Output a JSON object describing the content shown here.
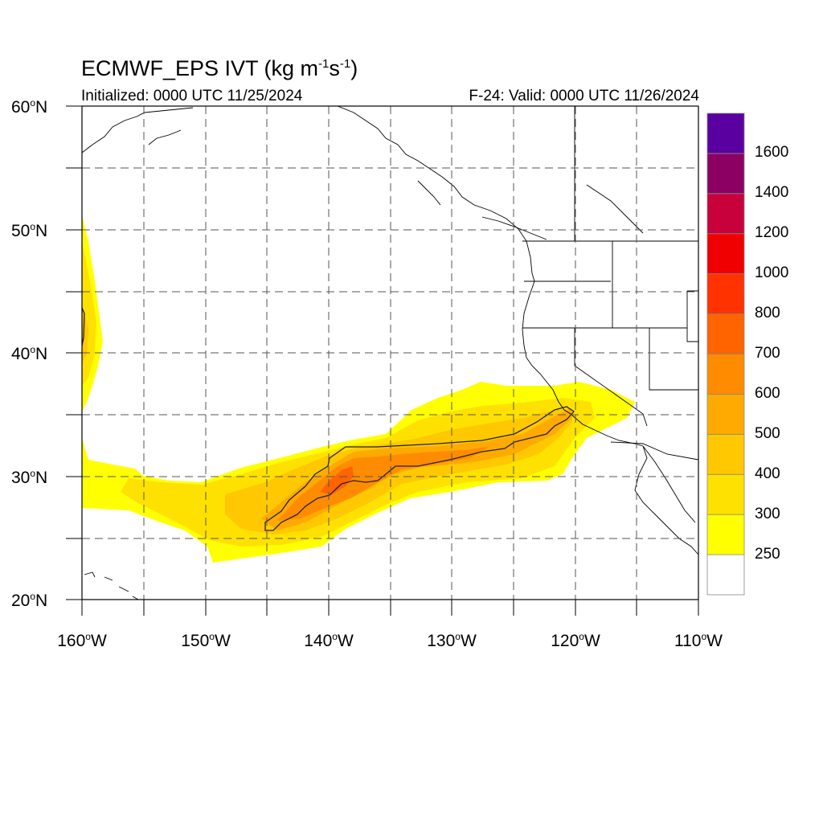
{
  "header": {
    "title": "ECMWF_EPS IVT (kg m",
    "title_exp1": "-1",
    "title_mid": "s",
    "title_exp2": "-1",
    "title_end": ")",
    "initialized": "Initialized: 0000 UTC 11/25/2024",
    "valid": "F-24: Valid: 0000 UTC 11/26/2024"
  },
  "map": {
    "lat_range": [
      20,
      60
    ],
    "lon_range": [
      -160,
      -110
    ],
    "lat_labels": [
      {
        "deg": "60",
        "hemi": "N"
      },
      {
        "deg": "50",
        "hemi": "N"
      },
      {
        "deg": "40",
        "hemi": "N"
      },
      {
        "deg": "30",
        "hemi": "N"
      },
      {
        "deg": "20",
        "hemi": "N"
      }
    ],
    "lon_labels": [
      {
        "deg": "160",
        "hemi": "W"
      },
      {
        "deg": "150",
        "hemi": "W"
      },
      {
        "deg": "140",
        "hemi": "W"
      },
      {
        "deg": "130",
        "hemi": "W"
      },
      {
        "deg": "120",
        "hemi": "W"
      },
      {
        "deg": "110",
        "hemi": "W"
      }
    ]
  },
  "colorbar": {
    "labels": [
      "1600",
      "1400",
      "1200",
      "1000",
      "800",
      "700",
      "600",
      "500",
      "400",
      "300",
      "250"
    ],
    "colors": [
      "#ffffff",
      "#ffff00",
      "#ffe100",
      "#ffc800",
      "#ffaa00",
      "#ff8c00",
      "#ff6400",
      "#ff3200",
      "#f00000",
      "#c8003c",
      "#8c0064",
      "#5a00a0"
    ]
  }
}
